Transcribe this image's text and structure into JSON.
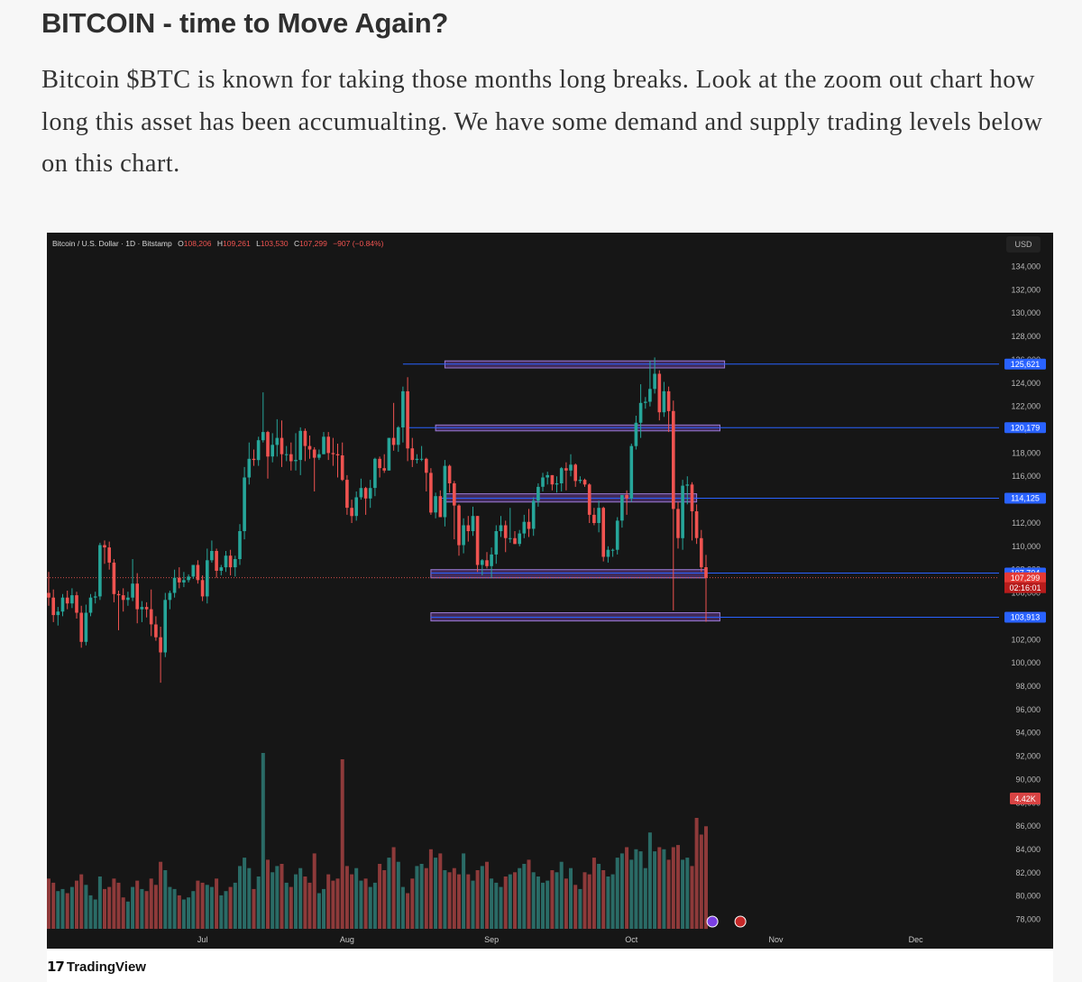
{
  "article": {
    "title": "BITCOIN - time to Move Again?",
    "body": "Bitcoin $BTC is known for taking those months long breaks. Look at the zoom out chart how long this asset has been accumualting. We have some demand and supply trading levels below on this chart."
  },
  "footer": {
    "logo_mark": "17",
    "logo_text": "TradingView"
  },
  "colors": {
    "up": "#26a69a",
    "down": "#ef5350",
    "level_line": "#2962ff",
    "zone_fill": "#4a2f66",
    "zone_border": "#9b7ad4",
    "chart_bg": "#161616"
  },
  "chart_data": {
    "type": "candlestick",
    "title": "Bitcoin / U.S. Dollar · 1D · Bitstamp",
    "ohlc_legend": {
      "o_label": "O",
      "o_value": "108,206",
      "h_label": "H",
      "h_value": "109,261",
      "l_label": "L",
      "l_value": "103,530",
      "c_label": "C",
      "c_value": "107,299",
      "change": "−907 (−0.84%)"
    },
    "currency": "USD",
    "y_ticks": [
      "134,000",
      "132,000",
      "130,000",
      "128,000",
      "126,000",
      "124,000",
      "122,000",
      "120,000",
      "118,000",
      "116,000",
      "114,000",
      "112,000",
      "110,000",
      "108,000",
      "106,000",
      "104,000",
      "102,000",
      "100,000",
      "98,000",
      "96,000",
      "94,000",
      "92,000",
      "90,000",
      "88,000",
      "86,000",
      "84,000",
      "82,000",
      "80,000",
      "78,000"
    ],
    "ylim": [
      77000,
      135000
    ],
    "x_labels": [
      "Jul",
      "Aug",
      "Sep",
      "Oct",
      "Nov",
      "Dec"
    ],
    "x_label_dates": [
      "2025-07-01",
      "2025-08-01",
      "2025-09-01",
      "2025-10-01",
      "2025-11-01",
      "2025-12-01"
    ],
    "level_lines": [
      {
        "value": 125621,
        "label": "125,621"
      },
      {
        "value": 120179,
        "label": "120,179"
      },
      {
        "value": 114125,
        "label": "114,125"
      },
      {
        "value": 107704,
        "label": "107,704"
      },
      {
        "value": 103913,
        "label": "103,913"
      }
    ],
    "zones": [
      {
        "from": "2025-08-22",
        "to": "2025-10-21",
        "low": 125300,
        "high": 125900
      },
      {
        "from": "2025-08-20",
        "to": "2025-10-20",
        "low": 119900,
        "high": 120400
      },
      {
        "from": "2025-08-22",
        "to": "2025-10-15",
        "low": 113800,
        "high": 114500
      },
      {
        "from": "2025-08-19",
        "to": "2025-10-17",
        "low": 107300,
        "high": 108000
      },
      {
        "from": "2025-08-19",
        "to": "2025-10-20",
        "low": 103600,
        "high": 104300
      }
    ],
    "current_price": {
      "value": 107299,
      "label": "107,299",
      "countdown": "02:16:01"
    },
    "volume_tag": "4.42K",
    "candles": [
      [
        "2025-05-29",
        106000,
        107800,
        104900,
        105600
      ],
      [
        "2025-05-30",
        105600,
        106300,
        103500,
        104100
      ],
      [
        "2025-05-31",
        104100,
        104800,
        103200,
        104400
      ],
      [
        "2025-06-01",
        104400,
        105900,
        104000,
        105600
      ],
      [
        "2025-06-02",
        105600,
        106200,
        104600,
        105100
      ],
      [
        "2025-06-03",
        105100,
        106400,
        104700,
        105800
      ],
      [
        "2025-06-04",
        105800,
        106100,
        103800,
        104300
      ],
      [
        "2025-06-05",
        104300,
        104900,
        101300,
        101800
      ],
      [
        "2025-06-06",
        101800,
        105000,
        101500,
        104300
      ],
      [
        "2025-06-07",
        104300,
        105900,
        104000,
        105600
      ],
      [
        "2025-06-08",
        105600,
        106100,
        105100,
        105700
      ],
      [
        "2025-06-09",
        105700,
        110300,
        105400,
        110100
      ],
      [
        "2025-06-10",
        110100,
        110500,
        108500,
        109900
      ],
      [
        "2025-06-11",
        109900,
        110400,
        108000,
        108600
      ],
      [
        "2025-06-12",
        108600,
        108900,
        105200,
        105900
      ],
      [
        "2025-06-13",
        105900,
        106200,
        102800,
        105800
      ],
      [
        "2025-06-14",
        105800,
        106400,
        104400,
        105400
      ],
      [
        "2025-06-15",
        105400,
        106100,
        104900,
        105600
      ],
      [
        "2025-06-16",
        105600,
        108900,
        105300,
        106800
      ],
      [
        "2025-06-17",
        106800,
        107700,
        103400,
        104600
      ],
      [
        "2025-06-18",
        104600,
        105300,
        103500,
        104800
      ],
      [
        "2025-06-19",
        104800,
        105200,
        103900,
        104600
      ],
      [
        "2025-06-20",
        104600,
        106300,
        102300,
        103300
      ],
      [
        "2025-06-21",
        103300,
        104000,
        101900,
        102200
      ],
      [
        "2025-06-22",
        102200,
        103100,
        98300,
        100900
      ],
      [
        "2025-06-23",
        100900,
        106000,
        100500,
        105400
      ],
      [
        "2025-06-24",
        105400,
        106200,
        104600,
        106000
      ],
      [
        "2025-06-25",
        106000,
        108000,
        105600,
        107300
      ],
      [
        "2025-06-26",
        107300,
        108200,
        106400,
        106900
      ],
      [
        "2025-06-27",
        106900,
        107800,
        106500,
        107100
      ],
      [
        "2025-06-28",
        107100,
        107600,
        106900,
        107400
      ],
      [
        "2025-06-29",
        107400,
        108400,
        107200,
        108400
      ],
      [
        "2025-06-30",
        108400,
        108800,
        106800,
        107100
      ],
      [
        "2025-07-01",
        107100,
        107500,
        105300,
        105700
      ],
      [
        "2025-07-02",
        105700,
        109800,
        105100,
        108800
      ],
      [
        "2025-07-03",
        108800,
        110500,
        108600,
        109600
      ],
      [
        "2025-07-04",
        109600,
        109800,
        107300,
        107900
      ],
      [
        "2025-07-05",
        107900,
        108400,
        107500,
        108200
      ],
      [
        "2025-07-06",
        108200,
        109600,
        107800,
        109200
      ],
      [
        "2025-07-07",
        109200,
        109700,
        107500,
        108200
      ],
      [
        "2025-07-08",
        108200,
        109200,
        107400,
        108900
      ],
      [
        "2025-07-09",
        108900,
        111900,
        108400,
        111300
      ],
      [
        "2025-07-10",
        111300,
        116800,
        110600,
        115900
      ],
      [
        "2025-07-11",
        115900,
        118900,
        115300,
        117500
      ],
      [
        "2025-07-12",
        117500,
        118300,
        116900,
        117400
      ],
      [
        "2025-07-13",
        117400,
        119400,
        116900,
        119100
      ],
      [
        "2025-07-14",
        119100,
        123200,
        118900,
        119800
      ],
      [
        "2025-07-15",
        119800,
        119900,
        115800,
        117700
      ],
      [
        "2025-07-16",
        117700,
        119700,
        117200,
        118700
      ],
      [
        "2025-07-17",
        118700,
        120900,
        117700,
        119300
      ],
      [
        "2025-07-18",
        119300,
        120800,
        116800,
        117900
      ],
      [
        "2025-07-19",
        117900,
        118600,
        117300,
        117900
      ],
      [
        "2025-07-20",
        117900,
        118900,
        116500,
        117300
      ],
      [
        "2025-07-21",
        117300,
        119700,
        116500,
        117400
      ],
      [
        "2025-07-22",
        117400,
        120200,
        116100,
        119900
      ],
      [
        "2025-07-23",
        119900,
        120100,
        117300,
        118600
      ],
      [
        "2025-07-24",
        118600,
        119500,
        117500,
        118300
      ],
      [
        "2025-07-25",
        118300,
        118500,
        114700,
        117600
      ],
      [
        "2025-07-26",
        117600,
        118300,
        117400,
        117900
      ],
      [
        "2025-07-27",
        117900,
        119800,
        117900,
        119400
      ],
      [
        "2025-07-28",
        119400,
        119800,
        117400,
        118000
      ],
      [
        "2025-07-29",
        118000,
        119300,
        116900,
        117900
      ],
      [
        "2025-07-30",
        117900,
        118800,
        115900,
        117800
      ],
      [
        "2025-07-31",
        117800,
        118900,
        115600,
        115700
      ],
      [
        "2025-08-01",
        115700,
        116100,
        112700,
        113300
      ],
      [
        "2025-08-02",
        113300,
        114000,
        112000,
        112600
      ],
      [
        "2025-08-03",
        112600,
        114700,
        112200,
        114200
      ],
      [
        "2025-08-04",
        114200,
        115800,
        114000,
        115000
      ],
      [
        "2025-08-05",
        115000,
        115100,
        112700,
        114100
      ],
      [
        "2025-08-06",
        114100,
        115700,
        113300,
        115000
      ],
      [
        "2025-08-07",
        115000,
        117600,
        114300,
        117500
      ],
      [
        "2025-08-08",
        117500,
        117700,
        115900,
        116700
      ],
      [
        "2025-08-09",
        116700,
        117900,
        116300,
        116500
      ],
      [
        "2025-08-10",
        116500,
        119300,
        116500,
        119300
      ],
      [
        "2025-08-11",
        119300,
        122300,
        118200,
        118700
      ],
      [
        "2025-08-12",
        118700,
        120300,
        118100,
        120200
      ],
      [
        "2025-08-13",
        120200,
        123700,
        118900,
        123300
      ],
      [
        "2025-08-14",
        123300,
        124500,
        117300,
        118400
      ],
      [
        "2025-08-15",
        118400,
        119300,
        116800,
        117400
      ],
      [
        "2025-08-16",
        117400,
        117900,
        117100,
        117500
      ],
      [
        "2025-08-17",
        117500,
        118600,
        117300,
        117500
      ],
      [
        "2025-08-18",
        117500,
        117600,
        114700,
        116300
      ],
      [
        "2025-08-19",
        116300,
        116700,
        112700,
        112900
      ],
      [
        "2025-08-20",
        112900,
        114600,
        112400,
        114300
      ],
      [
        "2025-08-21",
        114300,
        114800,
        112600,
        112500
      ],
      [
        "2025-08-22",
        112500,
        117400,
        111700,
        116900
      ],
      [
        "2025-08-23",
        116900,
        117000,
        114600,
        115400
      ],
      [
        "2025-08-24",
        115400,
        115600,
        110600,
        113500
      ],
      [
        "2025-08-25",
        113500,
        113600,
        109200,
        110100
      ],
      [
        "2025-08-26",
        110100,
        112400,
        109400,
        111800
      ],
      [
        "2025-08-27",
        111800,
        112600,
        110400,
        111300
      ],
      [
        "2025-08-28",
        111300,
        113400,
        110900,
        112600
      ],
      [
        "2025-08-29",
        112600,
        112600,
        107800,
        108400
      ],
      [
        "2025-08-30",
        108400,
        108900,
        107500,
        108800
      ],
      [
        "2025-08-31",
        108800,
        109500,
        108100,
        108300
      ],
      [
        "2025-09-01",
        108300,
        109900,
        107300,
        109300
      ],
      [
        "2025-09-02",
        109300,
        111800,
        108500,
        111300
      ],
      [
        "2025-09-03",
        111300,
        112600,
        110800,
        111800
      ],
      [
        "2025-09-04",
        111800,
        112200,
        109500,
        110700
      ],
      [
        "2025-09-05",
        110700,
        113300,
        110300,
        110700
      ],
      [
        "2025-09-06",
        110700,
        111300,
        110200,
        110200
      ],
      [
        "2025-09-07",
        110200,
        111400,
        110000,
        111100
      ],
      [
        "2025-09-08",
        111100,
        112700,
        110700,
        112100
      ],
      [
        "2025-09-09",
        112100,
        113200,
        110800,
        111500
      ],
      [
        "2025-09-10",
        111500,
        114200,
        110900,
        113900
      ],
      [
        "2025-09-11",
        113900,
        115400,
        113400,
        115100
      ],
      [
        "2025-09-12",
        115100,
        116300,
        114700,
        115900
      ],
      [
        "2025-09-13",
        115900,
        116400,
        115300,
        116100
      ],
      [
        "2025-09-14",
        116100,
        116100,
        114800,
        115300
      ],
      [
        "2025-09-15",
        115300,
        116000,
        114600,
        115400
      ],
      [
        "2025-09-16",
        115400,
        116800,
        114700,
        116700
      ],
      [
        "2025-09-17",
        116700,
        117200,
        114800,
        116500
      ],
      [
        "2025-09-18",
        116500,
        117900,
        116000,
        117000
      ],
      [
        "2025-09-19",
        117000,
        117100,
        115100,
        115600
      ],
      [
        "2025-09-20",
        115600,
        116000,
        115400,
        115700
      ],
      [
        "2025-09-21",
        115700,
        115800,
        115100,
        115300
      ],
      [
        "2025-09-22",
        115300,
        115400,
        112000,
        112700
      ],
      [
        "2025-09-23",
        112700,
        113300,
        111800,
        112000
      ],
      [
        "2025-09-24",
        112000,
        113900,
        111200,
        113300
      ],
      [
        "2025-09-25",
        113300,
        113400,
        108700,
        109100
      ],
      [
        "2025-09-26",
        109100,
        110000,
        108600,
        109700
      ],
      [
        "2025-09-27",
        109700,
        109800,
        109100,
        109700
      ],
      [
        "2025-09-28",
        109700,
        112500,
        109300,
        112200
      ],
      [
        "2025-09-29",
        112200,
        114400,
        111600,
        114400
      ],
      [
        "2025-09-30",
        114400,
        114800,
        112700,
        114100
      ],
      [
        "2025-10-01",
        114100,
        118800,
        113800,
        118600
      ],
      [
        "2025-10-02",
        118600,
        121200,
        118300,
        120600
      ],
      [
        "2025-10-03",
        120600,
        123900,
        119300,
        122300
      ],
      [
        "2025-10-04",
        122300,
        122800,
        121800,
        122400
      ],
      [
        "2025-10-05",
        122400,
        125900,
        122000,
        123500
      ],
      [
        "2025-10-06",
        123500,
        126200,
        123100,
        124800
      ],
      [
        "2025-10-07",
        124800,
        125100,
        120800,
        121500
      ],
      [
        "2025-10-08",
        121500,
        124100,
        121100,
        123300
      ],
      [
        "2025-10-09",
        123300,
        123700,
        119800,
        121600
      ],
      [
        "2025-10-10",
        121600,
        122500,
        104500,
        113200
      ],
      [
        "2025-10-11",
        113200,
        113800,
        109800,
        110700
      ],
      [
        "2025-10-12",
        110700,
        115700,
        109700,
        115200
      ],
      [
        "2025-10-13",
        115200,
        116000,
        113600,
        115300
      ],
      [
        "2025-10-14",
        115300,
        115500,
        110500,
        113000
      ],
      [
        "2025-10-15",
        113000,
        113600,
        110200,
        110700
      ],
      [
        "2025-10-16",
        110700,
        111400,
        107800,
        108200
      ],
      [
        "2025-10-17",
        108206,
        109261,
        103530,
        107299
      ]
    ],
    "volumes": [
      2.4,
      2.2,
      1.8,
      1.9,
      1.7,
      2.0,
      2.3,
      2.6,
      2.1,
      1.6,
      1.4,
      2.5,
      1.9,
      2.0,
      2.4,
      2.2,
      1.5,
      1.3,
      2.0,
      2.3,
      1.9,
      1.8,
      2.4,
      2.1,
      3.2,
      2.8,
      2.0,
      1.9,
      1.6,
      1.4,
      1.5,
      1.8,
      2.3,
      2.2,
      2.1,
      2.0,
      2.4,
      1.6,
      1.8,
      2.0,
      2.2,
      3.0,
      3.4,
      2.9,
      1.9,
      2.5,
      8.4,
      3.3,
      2.7,
      3.0,
      3.1,
      2.2,
      2.0,
      2.6,
      2.9,
      2.5,
      2.2,
      3.6,
      1.7,
      1.9,
      2.6,
      2.3,
      2.4,
      8.1,
      3.0,
      2.6,
      2.9,
      2.3,
      2.4,
      2.0,
      2.2,
      3.1,
      2.8,
      3.4,
      3.9,
      3.2,
      2.0,
      1.7,
      2.4,
      3.0,
      3.1,
      2.9,
      3.8,
      3.4,
      3.6,
      2.8,
      2.7,
      2.9,
      2.6,
      3.6,
      2.6,
      2.3,
      2.8,
      3.0,
      3.2,
      2.4,
      2.2,
      2.0,
      2.5,
      2.6,
      2.7,
      2.9,
      3.1,
      3.3,
      2.7,
      2.5,
      2.2,
      2.3,
      2.8,
      2.7,
      3.2,
      2.4,
      2.9,
      2.1,
      1.9,
      2.7,
      2.6,
      3.4,
      3.1,
      2.8,
      2.5,
      2.6,
      3.4,
      3.6,
      3.9,
      3.3,
      3.8,
      3.7,
      2.9,
      4.6,
      3.7,
      3.9,
      3.8,
      3.3,
      3.9,
      4.0,
      3.3,
      3.4,
      3.0,
      5.3,
      4.5,
      4.9
    ]
  }
}
